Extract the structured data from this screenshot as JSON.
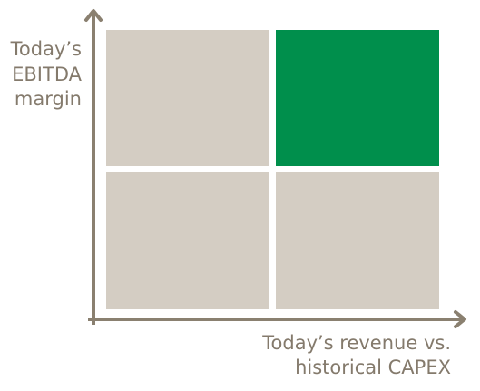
{
  "y_axis_label": {
    "lines": [
      "Today’s",
      "EBITDA",
      "margin"
    ]
  },
  "x_axis_label": {
    "lines": [
      "Today’s revenue vs.",
      "historical CAPEX"
    ]
  }
}
